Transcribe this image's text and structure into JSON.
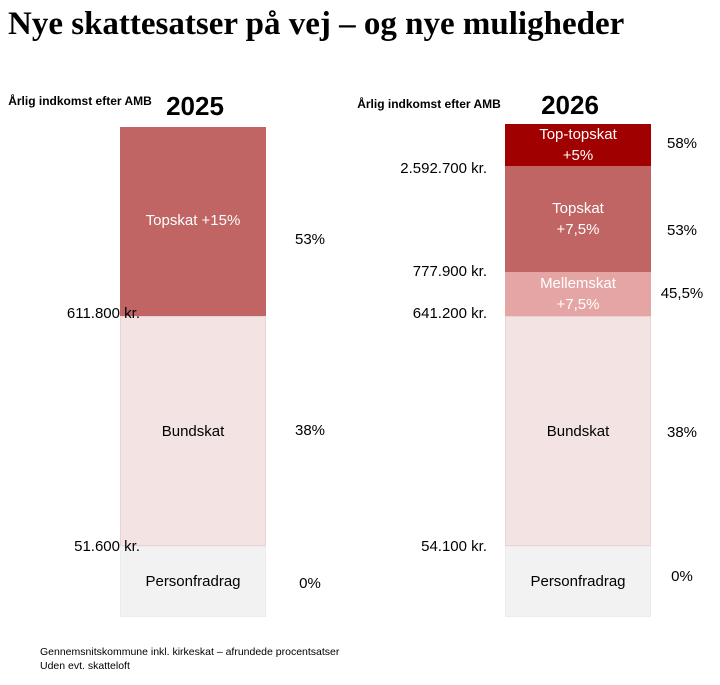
{
  "title": "Nye skattesatser på vej – og nye muligheder",
  "axis_label_left": "Årlig indkomst efter AMB",
  "axis_label_right": "Årlig indkomst efter AMB",
  "footnote": [
    "Gennemsnitskommune inkl. kirkeskat – afrundede procentsatser",
    "Uden evt. skatteloft"
  ],
  "colors": {
    "top_top": "#a00000",
    "top": "#c06464",
    "middle": "#e6a5a5",
    "base": "#f3e3e3",
    "personal": "#f2f2f2"
  },
  "chart_data": [
    {
      "type": "stacked-bar",
      "title": "2025",
      "ylabel": "Årlig indkomst efter AMB",
      "segments": [
        {
          "name": "Personfradrag",
          "label": [
            "Personfradrag"
          ],
          "rate": "0%",
          "color_key": "personal"
        },
        {
          "name": "Bundskat",
          "label": [
            "Bundskat"
          ],
          "rate": "38%",
          "color_key": "base"
        },
        {
          "name": "Topskat +15%",
          "label": [
            "Topskat +15%"
          ],
          "rate": "53%",
          "color_key": "top"
        }
      ],
      "thresholds": [
        "51.600 kr.",
        "611.800 kr."
      ]
    },
    {
      "type": "stacked-bar",
      "title": "2026",
      "ylabel": "Årlig indkomst efter AMB",
      "segments": [
        {
          "name": "Personfradrag",
          "label": [
            "Personfradrag"
          ],
          "rate": "0%",
          "color_key": "personal"
        },
        {
          "name": "Bundskat",
          "label": [
            "Bundskat"
          ],
          "rate": "38%",
          "color_key": "base"
        },
        {
          "name": "Mellemskat +7,5%",
          "label": [
            "Mellemskat",
            "+7,5%"
          ],
          "rate": "45,5%",
          "color_key": "middle"
        },
        {
          "name": "Topskat +7,5%",
          "label": [
            "Topskat",
            "+7,5%"
          ],
          "rate": "53%",
          "color_key": "top"
        },
        {
          "name": "Top-topskat +5%",
          "label": [
            "Top-topskat",
            "+5%"
          ],
          "rate": "58%",
          "color_key": "top_top"
        }
      ],
      "thresholds": [
        "54.100 kr.",
        "641.200 kr.",
        "777.900 kr.",
        "2.592.700 kr."
      ]
    }
  ]
}
